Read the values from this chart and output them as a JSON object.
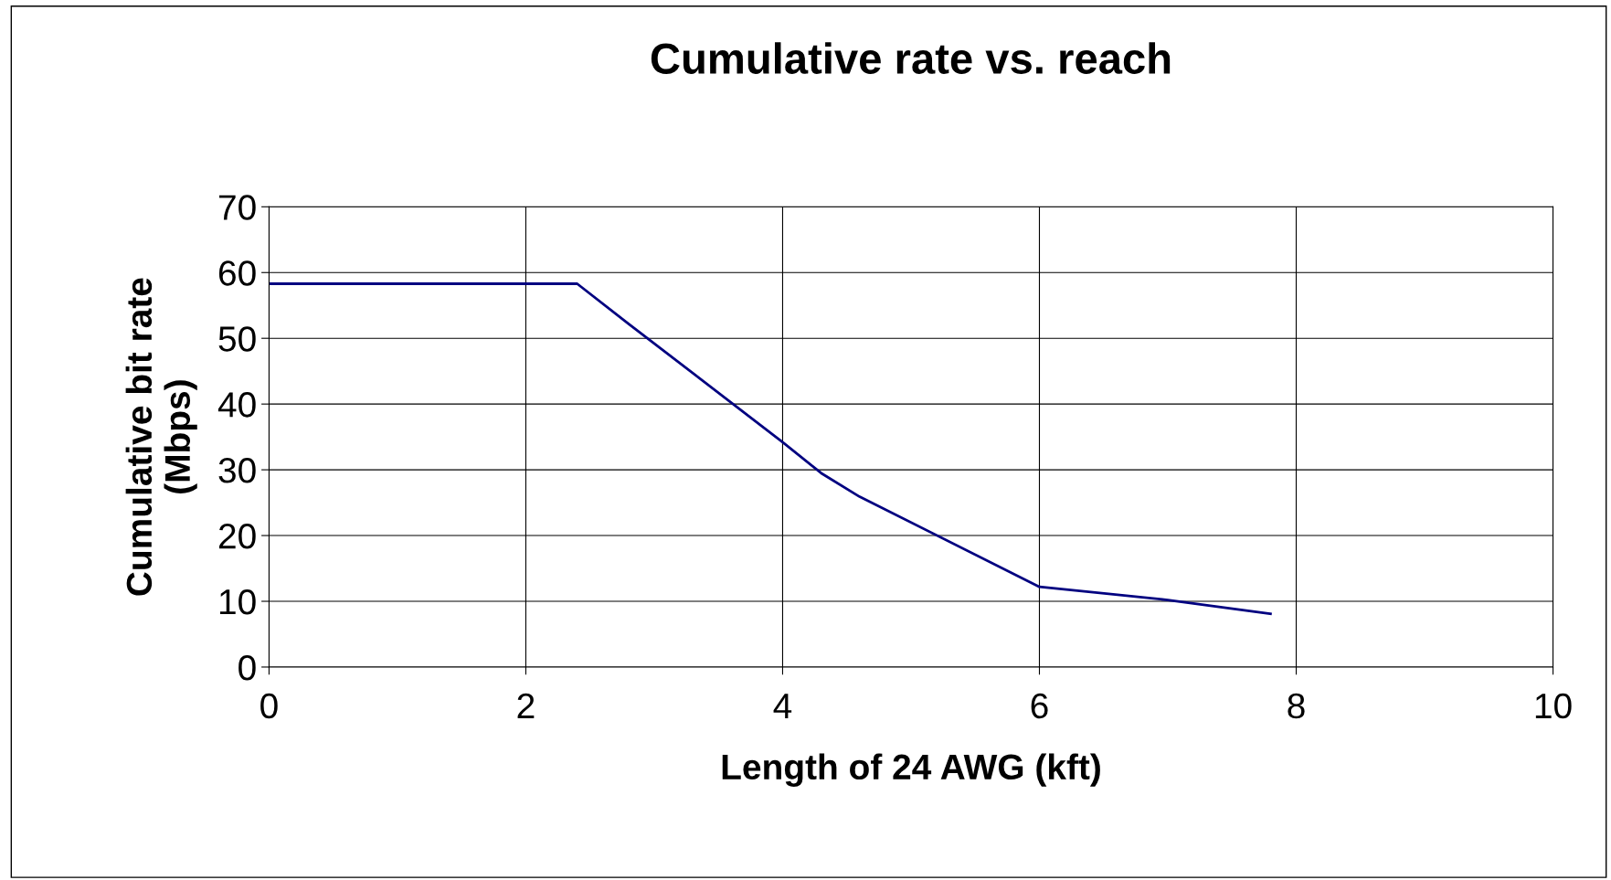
{
  "chart_data": {
    "type": "line",
    "title": "Cumulative rate vs. reach",
    "xlabel": "Length of 24 AWG (kft)",
    "ylabel": "Cumulative bit rate\n(Mbps)",
    "series": [
      {
        "color": "#000080",
        "x": [
          0,
          2.4,
          2.8,
          4.0,
          4.3,
          4.6,
          6.0,
          7.0,
          7.8
        ],
        "values": [
          58.3,
          58.3,
          52.2,
          34.2,
          29.5,
          25.9,
          12.2,
          10.2,
          8.1
        ]
      }
    ],
    "xlim": [
      0,
      10
    ],
    "xticks": [
      0,
      2,
      4,
      6,
      8,
      10
    ],
    "ylim": [
      0,
      70
    ],
    "yticks": [
      0,
      10,
      20,
      30,
      40,
      50,
      60,
      70
    ],
    "grid": true,
    "marker": "none",
    "line_style": "solid"
  }
}
